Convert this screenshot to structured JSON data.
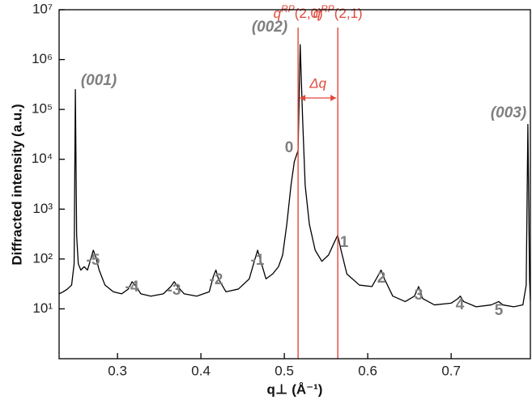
{
  "chart_data": {
    "type": "line",
    "color": "#000000",
    "log_y": true,
    "x_label": "q⊥ (Å⁻¹)",
    "y_label": "Diffracted intensity (a.u.)",
    "xlim": [
      0.23,
      0.795
    ],
    "xticks": [
      0.3,
      0.4,
      0.5,
      0.6,
      0.7
    ],
    "ylim": [
      1,
      10000000
    ],
    "yticks": [
      {
        "value": 10,
        "label": "10¹"
      },
      {
        "value": 100,
        "label": "10²"
      },
      {
        "value": 1000,
        "label": "10³"
      },
      {
        "value": 10000,
        "label": "10⁴"
      },
      {
        "value": 100000,
        "label": "10⁵"
      },
      {
        "value": 1000000,
        "label": "10⁶"
      },
      {
        "value": 10000000,
        "label": "10⁷"
      }
    ],
    "x": [
      0.23,
      0.235,
      0.24,
      0.245,
      0.248,
      0.2495,
      0.251,
      0.253,
      0.256,
      0.26,
      0.264,
      0.268,
      0.271,
      0.274,
      0.278,
      0.285,
      0.295,
      0.305,
      0.313,
      0.3175,
      0.321,
      0.328,
      0.34,
      0.355,
      0.364,
      0.368,
      0.372,
      0.38,
      0.395,
      0.41,
      0.415,
      0.418,
      0.421,
      0.43,
      0.445,
      0.458,
      0.464,
      0.468,
      0.471,
      0.478,
      0.486,
      0.493,
      0.498,
      0.503,
      0.508,
      0.512,
      0.5165,
      0.519,
      0.522,
      0.525,
      0.53,
      0.537,
      0.545,
      0.553,
      0.559,
      0.564,
      0.568,
      0.575,
      0.59,
      0.605,
      0.612,
      0.616,
      0.62,
      0.63,
      0.645,
      0.656,
      0.661,
      0.666,
      0.68,
      0.7,
      0.708,
      0.711,
      0.715,
      0.73,
      0.748,
      0.757,
      0.762,
      0.775,
      0.786,
      0.79,
      0.792,
      0.794,
      0.795
    ],
    "values": [
      20,
      22,
      25,
      30,
      80,
      250000,
      300,
      80,
      60,
      70,
      60,
      100,
      150,
      110,
      60,
      30,
      22,
      20,
      25,
      35,
      30,
      20,
      18,
      20,
      28,
      35,
      28,
      20,
      18,
      22,
      45,
      60,
      40,
      22,
      25,
      40,
      90,
      150,
      100,
      40,
      50,
      70,
      120,
      500,
      3000,
      9000,
      15000,
      2000000,
      60000,
      3000,
      500,
      150,
      90,
      120,
      200,
      300,
      150,
      50,
      30,
      28,
      45,
      60,
      40,
      18,
      14,
      18,
      28,
      16,
      12,
      13,
      16,
      18,
      14,
      11,
      12,
      14,
      12,
      11,
      12,
      30,
      50000,
      40,
      15
    ],
    "peak_labels": [
      "(001)",
      "-5",
      "-4",
      "-3",
      "-2",
      "-1",
      "(002)",
      "0",
      "1",
      "2",
      "3",
      "4",
      "5",
      "(003)"
    ],
    "reference_lines": [
      {
        "x": 0.5165,
        "symbol": "q",
        "sup": "RP",
        "args": "(2,0)"
      },
      {
        "x": 0.5641,
        "symbol": "q",
        "sup": "RP",
        "args": "(2,1)"
      }
    ],
    "reference_color": "#e0483a",
    "delta_label": "Δq"
  }
}
